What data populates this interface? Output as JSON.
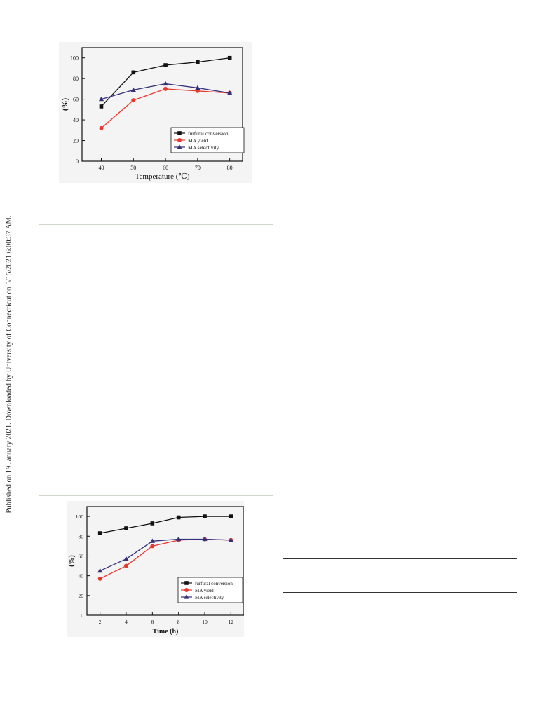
{
  "side_note": "Published on 19 January 2021. Downloaded by University of Connecticut on 5/15/2021 6:00:37 AM.",
  "colors": {
    "conversion": "#111111",
    "yield": "#e8392f",
    "selectivity": "#34307a"
  },
  "chart_data": [
    {
      "type": "line",
      "title": "",
      "xlabel": "Temperature (℃)",
      "ylabel": "(%)",
      "x": [
        40,
        50,
        60,
        70,
        80
      ],
      "xticks": [
        40,
        50,
        60,
        70,
        80
      ],
      "yticks": [
        0,
        20,
        40,
        60,
        80,
        100
      ],
      "xlim": [
        34,
        84
      ],
      "ylim": [
        0,
        110
      ],
      "grid": false,
      "legend": "bottom-right",
      "series": [
        {
          "name": "furfural conversion",
          "marker": "square",
          "color": "#111111",
          "values": [
            53,
            86,
            93,
            96,
            100
          ]
        },
        {
          "name": "MA yield",
          "marker": "circle",
          "color": "#e8392f",
          "values": [
            32,
            59,
            70,
            68,
            66
          ]
        },
        {
          "name": "MA selectivity",
          "marker": "triangle",
          "color": "#34307a",
          "values": [
            60,
            69,
            75,
            71,
            66
          ]
        }
      ]
    },
    {
      "type": "line",
      "title": "",
      "xlabel": "Time (h)",
      "ylabel": "(%)",
      "x": [
        2,
        4,
        6,
        8,
        10,
        12
      ],
      "xticks": [
        2,
        4,
        6,
        8,
        10,
        12
      ],
      "yticks": [
        0,
        20,
        40,
        60,
        80,
        100
      ],
      "xlim": [
        1,
        13
      ],
      "ylim": [
        0,
        110
      ],
      "grid": false,
      "legend": "bottom-right",
      "series": [
        {
          "name": "furfural conversion",
          "marker": "square",
          "color": "#111111",
          "values": [
            83,
            88,
            93,
            99,
            100,
            100
          ]
        },
        {
          "name": "MA yield",
          "marker": "circle",
          "color": "#e8392f",
          "values": [
            37,
            50,
            70,
            76,
            77,
            76
          ]
        },
        {
          "name": "MA selectivity",
          "marker": "triangle",
          "color": "#34307a",
          "values": [
            45,
            57,
            75,
            77,
            77,
            76
          ]
        }
      ]
    }
  ]
}
